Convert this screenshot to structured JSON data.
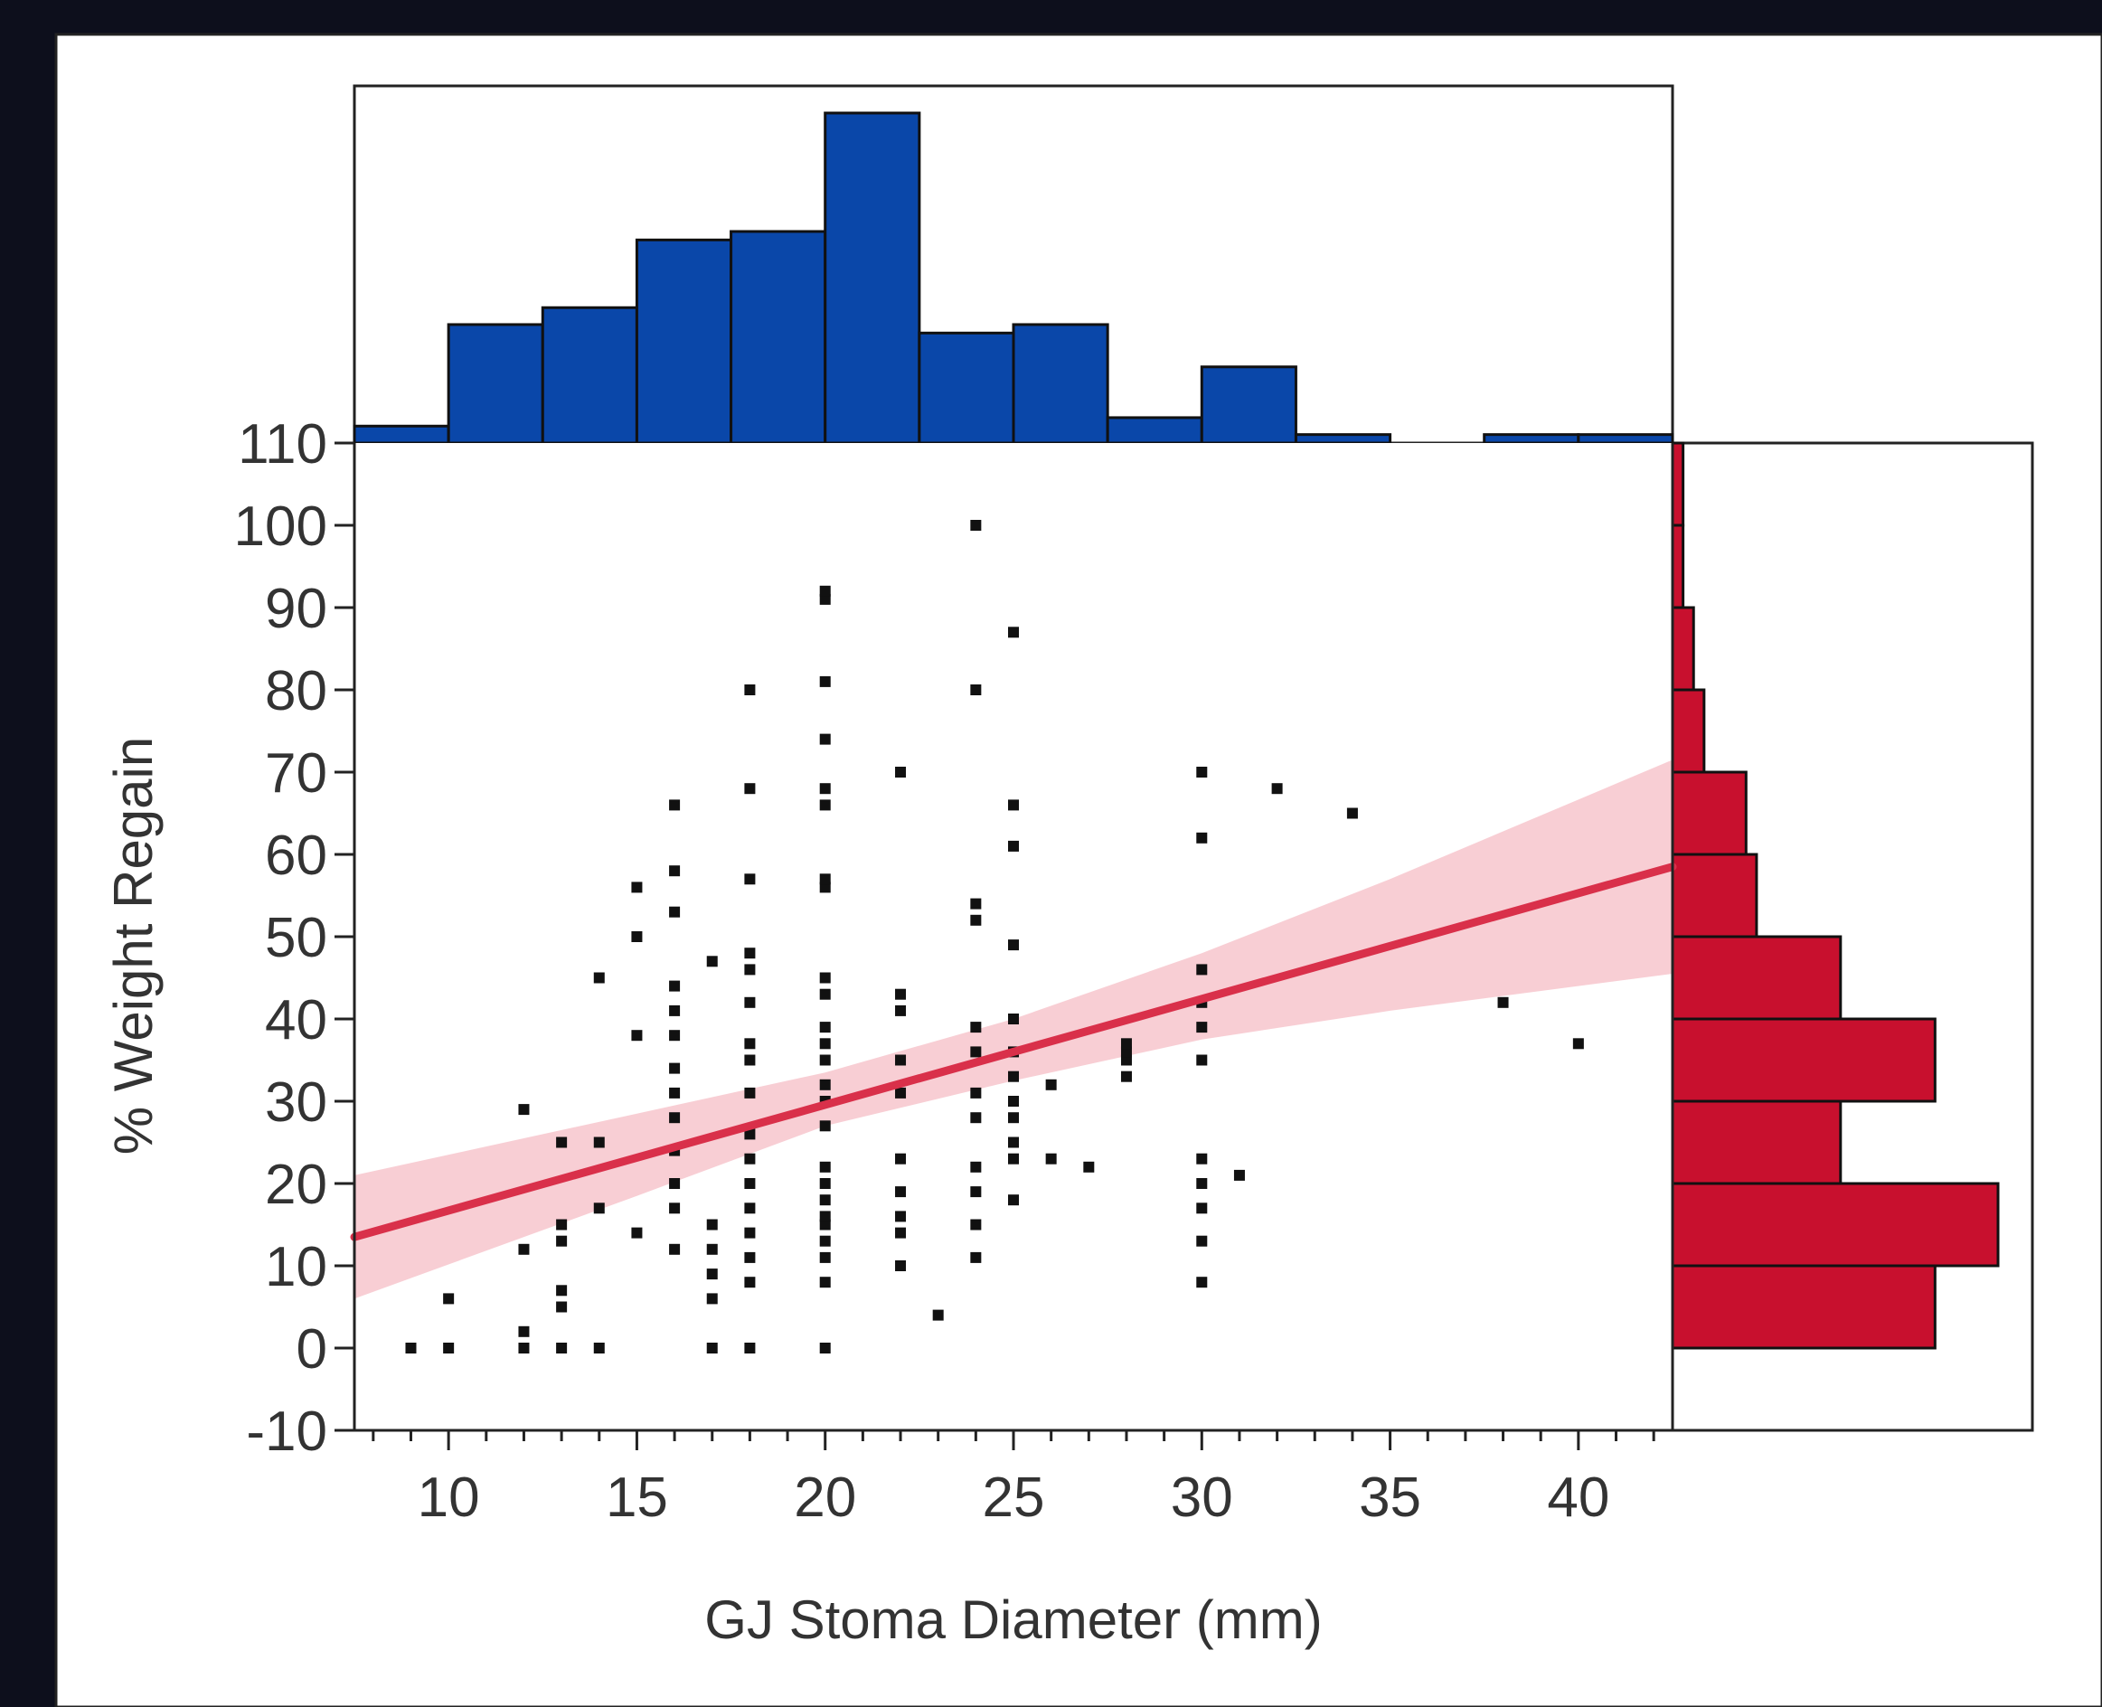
{
  "chart_data": {
    "type": "scatter",
    "xlabel": "GJ Stoma Diameter (mm)",
    "ylabel": "% Weight Regain",
    "xlim": [
      7.5,
      42.5
    ],
    "ylim": [
      -10,
      110
    ],
    "xticks": [
      10,
      15,
      20,
      25,
      30,
      35,
      40
    ],
    "yticks": [
      110,
      100,
      90,
      80,
      70,
      60,
      50,
      40,
      30,
      20,
      10,
      0,
      -10
    ],
    "grid": false,
    "legend": "none",
    "colors": {
      "top_histogram": "#0a47a9",
      "right_histogram": "#c8102e",
      "fit_line": "#d9304a",
      "confidence_band": "#f7c5cc",
      "points": "#111111",
      "panel": "#ffffff",
      "frame": "#0d0f1c"
    },
    "points": [
      [
        9,
        0
      ],
      [
        10,
        0
      ],
      [
        10,
        6
      ],
      [
        12,
        0
      ],
      [
        12,
        2
      ],
      [
        12,
        12
      ],
      [
        12,
        29
      ],
      [
        13,
        0
      ],
      [
        13,
        5
      ],
      [
        13,
        7
      ],
      [
        13,
        13
      ],
      [
        13,
        15
      ],
      [
        13,
        25
      ],
      [
        14,
        0
      ],
      [
        14,
        17
      ],
      [
        14,
        25
      ],
      [
        14,
        45
      ],
      [
        15,
        14
      ],
      [
        15,
        38
      ],
      [
        15,
        50
      ],
      [
        15,
        56
      ],
      [
        16,
        12
      ],
      [
        16,
        17
      ],
      [
        16,
        20
      ],
      [
        16,
        24
      ],
      [
        16,
        28
      ],
      [
        16,
        31
      ],
      [
        16,
        34
      ],
      [
        16,
        38
      ],
      [
        16,
        41
      ],
      [
        16,
        44
      ],
      [
        16,
        53
      ],
      [
        16,
        58
      ],
      [
        16,
        66
      ],
      [
        17,
        0
      ],
      [
        17,
        6
      ],
      [
        17,
        9
      ],
      [
        17,
        12
      ],
      [
        17,
        15
      ],
      [
        17,
        47
      ],
      [
        18,
        0
      ],
      [
        18,
        8
      ],
      [
        18,
        11
      ],
      [
        18,
        14
      ],
      [
        18,
        17
      ],
      [
        18,
        20
      ],
      [
        18,
        23
      ],
      [
        18,
        26
      ],
      [
        18,
        31
      ],
      [
        18,
        35
      ],
      [
        18,
        37
      ],
      [
        18,
        42
      ],
      [
        18,
        46
      ],
      [
        18,
        48
      ],
      [
        18,
        57
      ],
      [
        18,
        68
      ],
      [
        18,
        80
      ],
      [
        20,
        0
      ],
      [
        20,
        8
      ],
      [
        20,
        11
      ],
      [
        20,
        13
      ],
      [
        20,
        15
      ],
      [
        20,
        16
      ],
      [
        20,
        18
      ],
      [
        20,
        20
      ],
      [
        20,
        22
      ],
      [
        20,
        27
      ],
      [
        20,
        30
      ],
      [
        20,
        32
      ],
      [
        20,
        35
      ],
      [
        20,
        37
      ],
      [
        20,
        39
      ],
      [
        20,
        43
      ],
      [
        20,
        45
      ],
      [
        20,
        56
      ],
      [
        20,
        57
      ],
      [
        20,
        66
      ],
      [
        20,
        68
      ],
      [
        20,
        74
      ],
      [
        20,
        81
      ],
      [
        20,
        91
      ],
      [
        20,
        92
      ],
      [
        22,
        10
      ],
      [
        22,
        14
      ],
      [
        22,
        16
      ],
      [
        22,
        19
      ],
      [
        22,
        23
      ],
      [
        22,
        31
      ],
      [
        22,
        35
      ],
      [
        22,
        41
      ],
      [
        22,
        43
      ],
      [
        22,
        70
      ],
      [
        23,
        4
      ],
      [
        24,
        11
      ],
      [
        24,
        15
      ],
      [
        24,
        19
      ],
      [
        24,
        22
      ],
      [
        24,
        28
      ],
      [
        24,
        31
      ],
      [
        24,
        36
      ],
      [
        24,
        39
      ],
      [
        24,
        52
      ],
      [
        24,
        54
      ],
      [
        24,
        80
      ],
      [
        24,
        100
      ],
      [
        25,
        18
      ],
      [
        25,
        23
      ],
      [
        25,
        25
      ],
      [
        25,
        28
      ],
      [
        25,
        30
      ],
      [
        25,
        33
      ],
      [
        25,
        36
      ],
      [
        25,
        40
      ],
      [
        25,
        49
      ],
      [
        25,
        61
      ],
      [
        25,
        66
      ],
      [
        25,
        87
      ],
      [
        26,
        23
      ],
      [
        26,
        32
      ],
      [
        27,
        22
      ],
      [
        28,
        33
      ],
      [
        28,
        35
      ],
      [
        28,
        36
      ],
      [
        28,
        37
      ],
      [
        30,
        8
      ],
      [
        30,
        13
      ],
      [
        30,
        17
      ],
      [
        30,
        20
      ],
      [
        30,
        23
      ],
      [
        30,
        35
      ],
      [
        30,
        39
      ],
      [
        30,
        42
      ],
      [
        30,
        46
      ],
      [
        30,
        62
      ],
      [
        30,
        70
      ],
      [
        31,
        21
      ],
      [
        32,
        68
      ],
      [
        34,
        65
      ],
      [
        38,
        42
      ],
      [
        40,
        37
      ]
    ],
    "fit_line": {
      "x": [
        7.5,
        42.5
      ],
      "y": [
        13.5,
        58.5
      ]
    },
    "confidence_band": [
      {
        "x": 7.5,
        "lower": 6,
        "upper": 21
      },
      {
        "x": 15,
        "lower": 18.5,
        "upper": 28.5
      },
      {
        "x": 20,
        "lower": 27,
        "upper": 33.5
      },
      {
        "x": 25,
        "lower": 32.5,
        "upper": 40
      },
      {
        "x": 30,
        "lower": 37.5,
        "upper": 48
      },
      {
        "x": 35,
        "lower": 41,
        "upper": 57
      },
      {
        "x": 42.5,
        "lower": 45.5,
        "upper": 71.5
      }
    ],
    "top_histogram": {
      "bin_edges": [
        7.5,
        10,
        12.5,
        15,
        17.5,
        20,
        22.5,
        25,
        27.5,
        30,
        32.5,
        35,
        37.5,
        40,
        42.5
      ],
      "counts": [
        2,
        14,
        16,
        24,
        25,
        39,
        13,
        14,
        3,
        9,
        1,
        0,
        1,
        1
      ]
    },
    "right_histogram": {
      "bin_edges": [
        0,
        10,
        20,
        30,
        40,
        50,
        60,
        70,
        80,
        90,
        100,
        110
      ],
      "counts": [
        25,
        31,
        16,
        25,
        16,
        8,
        7,
        3,
        2,
        1,
        1
      ]
    }
  }
}
